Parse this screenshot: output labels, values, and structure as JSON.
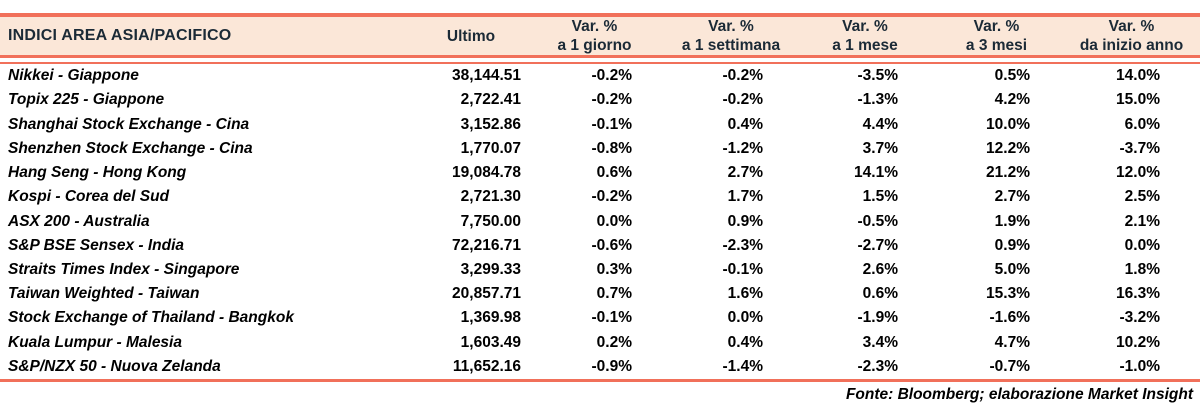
{
  "table": {
    "title": "INDICI AREA ASIA/PACIFICO",
    "ultimo_label": "Ultimo",
    "var_columns": [
      {
        "line1": "Var. %",
        "line2": "a 1 giorno"
      },
      {
        "line1": "Var. %",
        "line2": "a 1 settimana"
      },
      {
        "line1": "Var. %",
        "line2": "a 1 mese"
      },
      {
        "line1": "Var. %",
        "line2": "a 3 mesi"
      },
      {
        "line1": "Var. %",
        "line2": "da inizio anno"
      }
    ],
    "rows": [
      {
        "name": "Nikkei - Giappone",
        "ultimo": "38,144.51",
        "d1": "-0.2%",
        "w1": "-0.2%",
        "m1": "-3.5%",
        "m3": "0.5%",
        "ytd": "14.0%"
      },
      {
        "name": "Topix 225 - Giappone",
        "ultimo": "2,722.41",
        "d1": "-0.2%",
        "w1": "-0.2%",
        "m1": "-1.3%",
        "m3": "4.2%",
        "ytd": "15.0%"
      },
      {
        "name": "Shanghai Stock Exchange - Cina",
        "ultimo": "3,152.86",
        "d1": "-0.1%",
        "w1": "0.4%",
        "m1": "4.4%",
        "m3": "10.0%",
        "ytd": "6.0%"
      },
      {
        "name": "Shenzhen Stock Exchange - Cina",
        "ultimo": "1,770.07",
        "d1": "-0.8%",
        "w1": "-1.2%",
        "m1": "3.7%",
        "m3": "12.2%",
        "ytd": "-3.7%"
      },
      {
        "name": "Hang Seng - Hong Kong",
        "ultimo": "19,084.78",
        "d1": "0.6%",
        "w1": "2.7%",
        "m1": "14.1%",
        "m3": "21.2%",
        "ytd": "12.0%"
      },
      {
        "name": "Kospi - Corea del Sud",
        "ultimo": "2,721.30",
        "d1": "-0.2%",
        "w1": "1.7%",
        "m1": "1.5%",
        "m3": "2.7%",
        "ytd": "2.5%"
      },
      {
        "name": "ASX 200 - Australia",
        "ultimo": "7,750.00",
        "d1": "0.0%",
        "w1": "0.9%",
        "m1": "-0.5%",
        "m3": "1.9%",
        "ytd": "2.1%"
      },
      {
        "name": "S&P BSE Sensex - India",
        "ultimo": "72,216.71",
        "d1": "-0.6%",
        "w1": "-2.3%",
        "m1": "-2.7%",
        "m3": "0.9%",
        "ytd": "0.0%"
      },
      {
        "name": "Straits Times Index - Singapore",
        "ultimo": "3,299.33",
        "d1": "0.3%",
        "w1": "-0.1%",
        "m1": "2.6%",
        "m3": "5.0%",
        "ytd": "1.8%"
      },
      {
        "name": "Taiwan Weighted - Taiwan",
        "ultimo": "20,857.71",
        "d1": "0.7%",
        "w1": "1.6%",
        "m1": "0.6%",
        "m3": "15.3%",
        "ytd": "16.3%"
      },
      {
        "name": "Stock Exchange of Thailand - Bangkok",
        "ultimo": "1,369.98",
        "d1": "-0.1%",
        "w1": "0.0%",
        "m1": "-1.9%",
        "m3": "-1.6%",
        "ytd": "-3.2%"
      },
      {
        "name": "Kuala Lumpur - Malesia",
        "ultimo": "1,603.49",
        "d1": "0.2%",
        "w1": "0.4%",
        "m1": "3.4%",
        "m3": "4.7%",
        "ytd": "10.2%"
      },
      {
        "name": "S&P/NZX 50 - Nuova Zelanda",
        "ultimo": "11,652.16",
        "d1": "-0.9%",
        "w1": "-1.4%",
        "m1": "-2.3%",
        "m3": "-0.7%",
        "ytd": "-1.0%"
      }
    ],
    "footer": "Fonte: Bloomberg; elaborazione Market Insight"
  },
  "colors": {
    "rule_coral": "#F1705A",
    "header_background": "#FBE7D8",
    "header_text": "#1B2A36",
    "body_text": "#000000"
  }
}
